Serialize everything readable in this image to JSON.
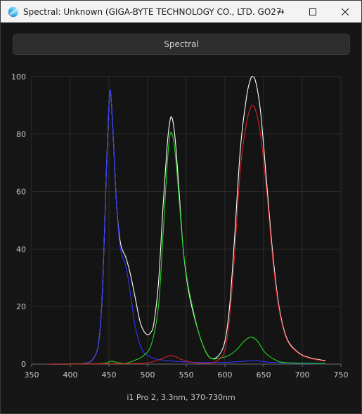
{
  "window": {
    "title": "Spectral: Unknown (GIGA-BYTE TECHNOLOGY CO., LTD. GO27Q...",
    "icon": "spectral-app-icon",
    "controls": [
      "minimize-icon",
      "maximize-icon",
      "close-icon"
    ]
  },
  "header": {
    "label": "Spectral"
  },
  "chart_data": {
    "type": "line",
    "title": "",
    "xlabel": "i1 Pro 2, 3.3nm, 370-730nm",
    "ylabel": "",
    "xlim": [
      350,
      750
    ],
    "ylim": [
      0,
      100
    ],
    "x_ticks": [
      350,
      400,
      450,
      500,
      550,
      600,
      650,
      700,
      750
    ],
    "y_ticks": [
      0,
      20,
      40,
      60,
      80,
      100
    ],
    "grid": true,
    "legend": "none",
    "series": [
      {
        "color": "#ffffff",
        "points": [
          [
            370,
            0
          ],
          [
            400,
            0
          ],
          [
            420,
            0.3
          ],
          [
            430,
            2
          ],
          [
            437,
            8
          ],
          [
            442,
            28
          ],
          [
            447,
            70
          ],
          [
            450,
            90
          ],
          [
            452,
            95
          ],
          [
            455,
            82
          ],
          [
            460,
            55
          ],
          [
            465,
            42
          ],
          [
            472,
            37
          ],
          [
            478,
            31
          ],
          [
            484,
            23
          ],
          [
            490,
            15
          ],
          [
            495,
            11.5
          ],
          [
            500,
            10.2
          ],
          [
            504,
            11
          ],
          [
            508,
            14
          ],
          [
            514,
            28
          ],
          [
            520,
            55
          ],
          [
            525,
            75
          ],
          [
            528,
            83
          ],
          [
            531,
            86
          ],
          [
            535,
            80
          ],
          [
            540,
            63
          ],
          [
            546,
            40
          ],
          [
            552,
            27
          ],
          [
            558,
            19
          ],
          [
            566,
            11
          ],
          [
            574,
            5
          ],
          [
            582,
            2
          ],
          [
            592,
            3
          ],
          [
            600,
            8
          ],
          [
            606,
            20
          ],
          [
            612,
            42
          ],
          [
            620,
            75
          ],
          [
            628,
            93
          ],
          [
            633,
            99
          ],
          [
            636,
            100
          ],
          [
            640,
            98
          ],
          [
            646,
            88
          ],
          [
            654,
            63
          ],
          [
            662,
            38
          ],
          [
            670,
            20
          ],
          [
            680,
            9
          ],
          [
            695,
            4
          ],
          [
            710,
            2.2
          ],
          [
            730,
            1.2
          ]
        ]
      },
      {
        "color": "#2f35ff",
        "points": [
          [
            370,
            0
          ],
          [
            400,
            0
          ],
          [
            420,
            0.3
          ],
          [
            430,
            2
          ],
          [
            437,
            8
          ],
          [
            442,
            28
          ],
          [
            447,
            70
          ],
          [
            450,
            90
          ],
          [
            452,
            95
          ],
          [
            455,
            82
          ],
          [
            460,
            55
          ],
          [
            465,
            40
          ],
          [
            472,
            34
          ],
          [
            478,
            24
          ],
          [
            484,
            13
          ],
          [
            490,
            7
          ],
          [
            495,
            4
          ],
          [
            500,
            3
          ],
          [
            510,
            1.8
          ],
          [
            520,
            1.4
          ],
          [
            535,
            1
          ],
          [
            560,
            0.6
          ],
          [
            600,
            0.6
          ],
          [
            625,
            1
          ],
          [
            640,
            1.2
          ],
          [
            660,
            0.6
          ],
          [
            700,
            0.2
          ],
          [
            730,
            0.1
          ]
        ]
      },
      {
        "color": "#1fd81f",
        "points": [
          [
            370,
            0
          ],
          [
            440,
            0.2
          ],
          [
            452,
            1
          ],
          [
            462,
            0.5
          ],
          [
            472,
            0.3
          ],
          [
            485,
            1.5
          ],
          [
            495,
            3
          ],
          [
            505,
            7
          ],
          [
            514,
            20
          ],
          [
            520,
            45
          ],
          [
            525,
            68
          ],
          [
            528,
            78
          ],
          [
            531,
            80.5
          ],
          [
            535,
            75
          ],
          [
            540,
            60
          ],
          [
            546,
            40
          ],
          [
            552,
            28
          ],
          [
            558,
            20
          ],
          [
            566,
            11
          ],
          [
            574,
            5
          ],
          [
            582,
            2
          ],
          [
            592,
            2
          ],
          [
            605,
            3
          ],
          [
            615,
            5
          ],
          [
            625,
            8
          ],
          [
            634,
            9.4
          ],
          [
            642,
            8
          ],
          [
            652,
            4
          ],
          [
            665,
            1.5
          ],
          [
            680,
            0.5
          ],
          [
            730,
            0.2
          ]
        ]
      },
      {
        "color": "#d81f1f",
        "points": [
          [
            370,
            0
          ],
          [
            480,
            0.2
          ],
          [
            500,
            0.5
          ],
          [
            515,
            1.5
          ],
          [
            524,
            2.5
          ],
          [
            530,
            3
          ],
          [
            536,
            2.6
          ],
          [
            545,
            1.5
          ],
          [
            560,
            0.5
          ],
          [
            580,
            0.3
          ],
          [
            592,
            1.5
          ],
          [
            600,
            5
          ],
          [
            606,
            16
          ],
          [
            612,
            36
          ],
          [
            620,
            68
          ],
          [
            628,
            84
          ],
          [
            633,
            89
          ],
          [
            636,
            90
          ],
          [
            640,
            88
          ],
          [
            646,
            80
          ],
          [
            654,
            60
          ],
          [
            662,
            36
          ],
          [
            670,
            19
          ],
          [
            680,
            8.5
          ],
          [
            695,
            3.8
          ],
          [
            710,
            2
          ],
          [
            730,
            1
          ]
        ]
      }
    ]
  }
}
